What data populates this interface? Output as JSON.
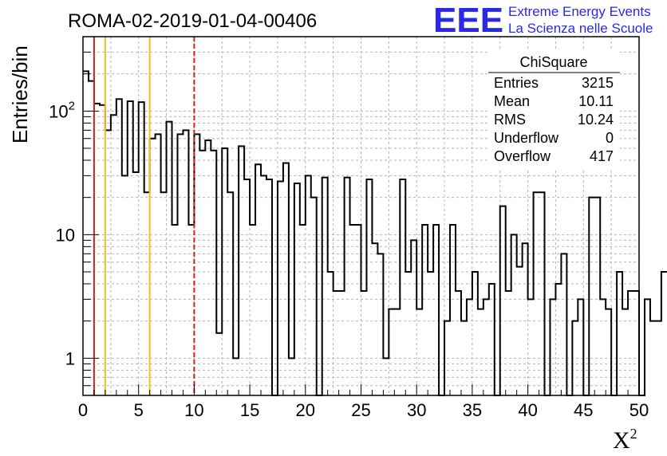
{
  "page_title": "ROMA-02-2019-01-04-00406",
  "logo": {
    "mark": "EEE",
    "line1": "Extreme Energy Events",
    "line2": "La Scienza nelle Scuole",
    "color": "#1a1ae6"
  },
  "stats_box": {
    "title": "ChiSquare",
    "rows": [
      {
        "label": "Entries",
        "value": "3215"
      },
      {
        "label": "Mean",
        "value": "10.11"
      },
      {
        "label": "RMS",
        "value": "10.24"
      },
      {
        "label": "Underflow",
        "value": "0"
      },
      {
        "label": "Overflow",
        "value": "417"
      }
    ]
  },
  "chart_data": {
    "type": "histogram",
    "title": "ROMA-02-2019-01-04-00406",
    "xlabel": "X",
    "xlabel_superscript": "2",
    "ylabel": "Entries/bin",
    "xlim": [
      0,
      50
    ],
    "ylim": [
      0.5,
      400
    ],
    "yscale": "log",
    "grid": true,
    "x_ticks": [
      0,
      5,
      10,
      15,
      20,
      25,
      30,
      35,
      40,
      45,
      50
    ],
    "y_ticks": [
      {
        "value": 1,
        "base": "1",
        "exp": ""
      },
      {
        "value": 10,
        "base": "10",
        "exp": ""
      },
      {
        "value": 100,
        "base": "10",
        "exp": "2"
      }
    ],
    "bin_width": 0.5,
    "bin_start": 0,
    "values": [
      210,
      175,
      115,
      112,
      70,
      93,
      125,
      30,
      120,
      32,
      118,
      22,
      60,
      65,
      22,
      82,
      12,
      65,
      70,
      12,
      65,
      48,
      58,
      48,
      1.6,
      50,
      22,
      1.0,
      52,
      28,
      12,
      37,
      30,
      28,
      0.5,
      27,
      38,
      1.0,
      26,
      12,
      30,
      20,
      0.4,
      29,
      5,
      3.5,
      3.5,
      29,
      12,
      12,
      3.5,
      28,
      8.5,
      7.0,
      1.0,
      2.5,
      2.5,
      28,
      5,
      9,
      2.5,
      12,
      5,
      12,
      0.4,
      2.0,
      12,
      3.5,
      2.0,
      3.0,
      5,
      2.5,
      3.0,
      4,
      0.4,
      17,
      3.5,
      10,
      5.5,
      8.5,
      3.0,
      22,
      22,
      0.4,
      3.0,
      4,
      7,
      0.4,
      2.0,
      3.0,
      0.4,
      20,
      20,
      3.0,
      2.5,
      0.4,
      5,
      2.5,
      3.5,
      3.5,
      0.4,
      3.0,
      2.0,
      2.0,
      5
    ],
    "vertical_lines": [
      {
        "x": 1,
        "color": "#d42020",
        "style": "solid"
      },
      {
        "x": 2,
        "color": "#f2c21a",
        "style": "solid"
      },
      {
        "x": 6,
        "color": "#f2c21a",
        "style": "solid"
      },
      {
        "x": 10,
        "color": "#d42020",
        "style": "dashed"
      }
    ]
  }
}
